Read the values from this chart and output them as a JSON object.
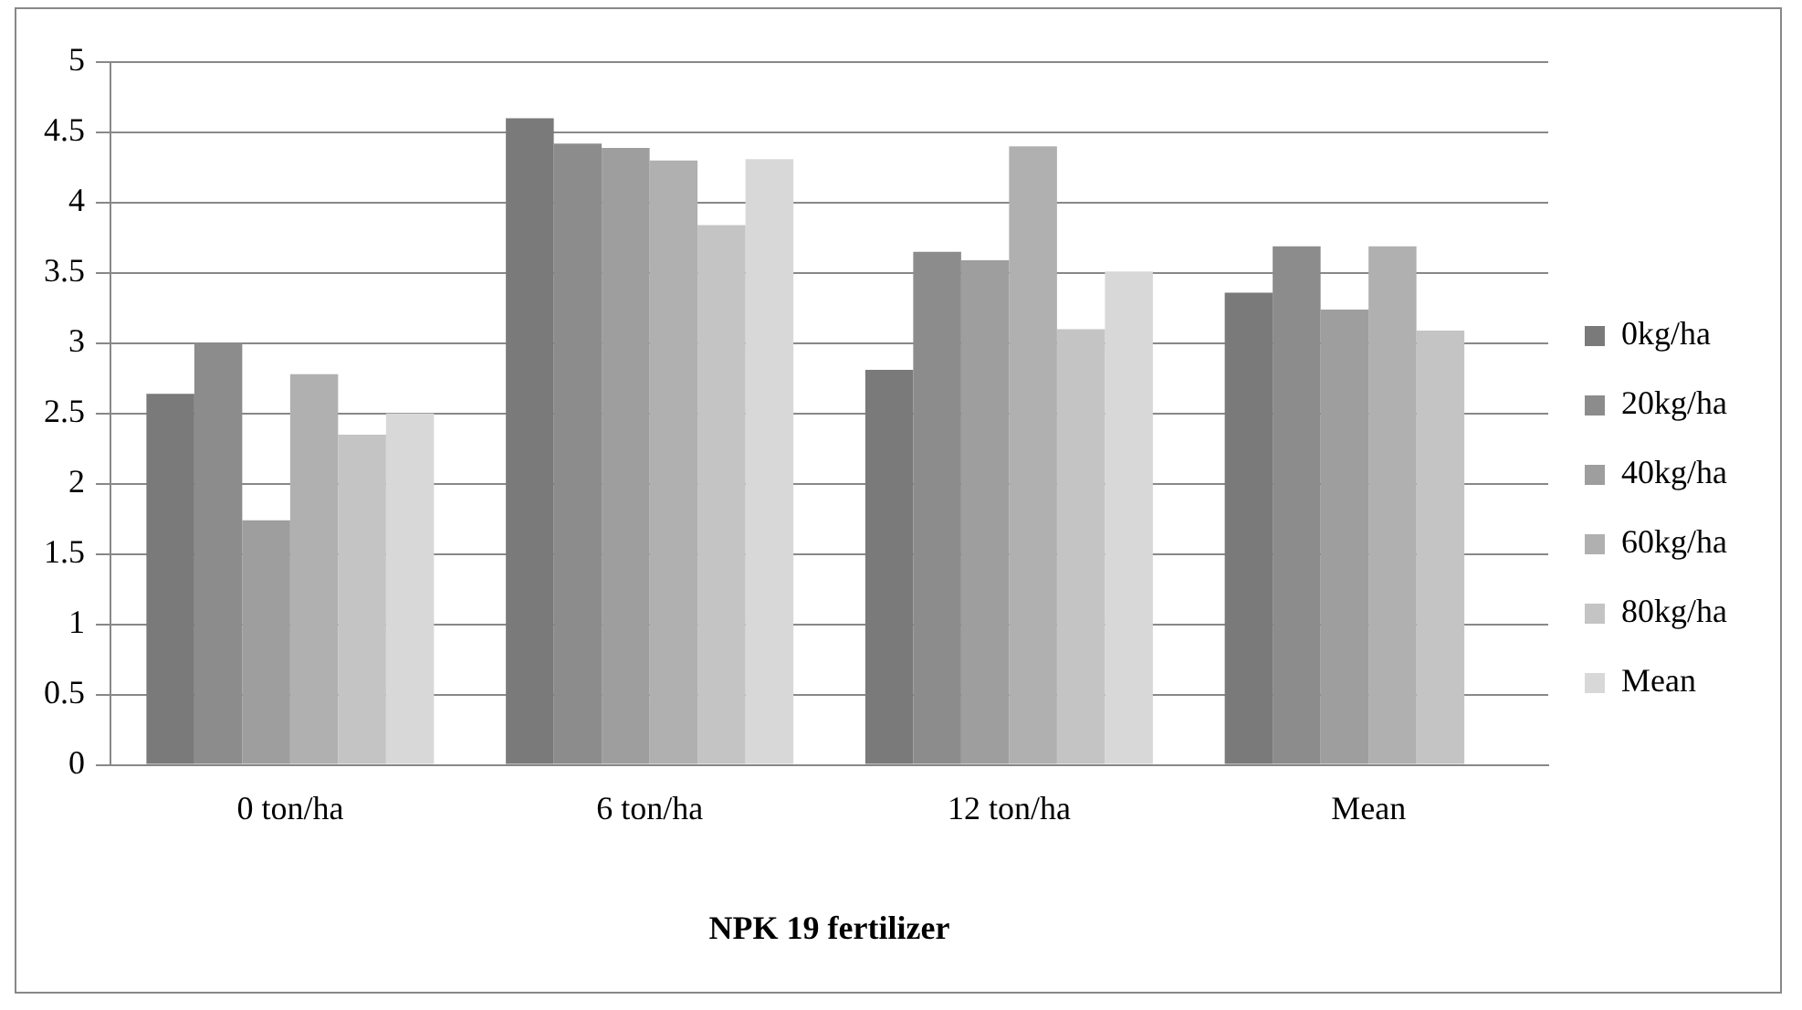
{
  "chart_data": {
    "type": "bar",
    "xlabel": "NPK 19 fertilizer",
    "categories": [
      "0 ton/ha",
      "6 ton/ha",
      "12 ton/ha",
      "Mean"
    ],
    "series": [
      {
        "name": "0kg/ha",
        "color": "#7a7a7a",
        "values": [
          2.64,
          4.6,
          2.81,
          3.36
        ]
      },
      {
        "name": "20kg/ha",
        "color": "#8c8c8c",
        "values": [
          3.0,
          4.42,
          3.65,
          3.69
        ]
      },
      {
        "name": "40kg/ha",
        "color": "#9e9e9e",
        "values": [
          1.74,
          4.39,
          3.59,
          3.24
        ]
      },
      {
        "name": "60kg/ha",
        "color": "#b0b0b0",
        "values": [
          2.78,
          4.3,
          4.4,
          3.69
        ]
      },
      {
        "name": "80kg/ha",
        "color": "#c4c4c4",
        "values": [
          2.35,
          3.84,
          3.1,
          3.09
        ]
      },
      {
        "name": "Mean",
        "color": "#d8d8d8",
        "values": [
          2.5,
          4.31,
          3.51,
          null
        ]
      }
    ],
    "ylim": [
      0,
      5
    ],
    "yticks": [
      0,
      0.5,
      1,
      1.5,
      2,
      2.5,
      3,
      3.5,
      4,
      4.5,
      5
    ],
    "grid": "y",
    "legend": "right"
  }
}
